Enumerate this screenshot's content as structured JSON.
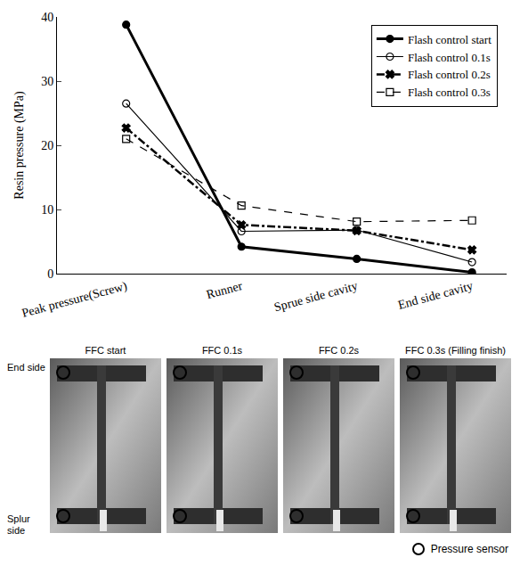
{
  "chart_data": {
    "type": "line",
    "categories": [
      "Peak pressure(Screw)",
      "Runner",
      "Sprue side cavity",
      "End side cavity"
    ],
    "y_label": "Resin pressure (MPa)",
    "ylim": [
      0,
      40
    ],
    "yticks": [
      0,
      10,
      20,
      30,
      40
    ],
    "grid": false,
    "legend": "top right",
    "series": [
      {
        "name": "Flash control start",
        "color": "#000000",
        "marker": "circle",
        "line_style": "solid",
        "values": [
          38.8,
          4.2,
          2.3,
          0.2
        ]
      },
      {
        "name": "Flash control 0.1s",
        "color": "#000000",
        "marker": "circle-open",
        "line_style": "solid",
        "values": [
          26.5,
          6.6,
          6.8,
          1.8
        ]
      },
      {
        "name": "Flash control 0.2s",
        "color": "#000000",
        "marker": "x",
        "line_style": "dashdot",
        "values": [
          22.7,
          7.6,
          6.7,
          3.7
        ]
      },
      {
        "name": "Flash control 0.3s",
        "color": "#000000",
        "marker": "square-open",
        "line_style": "dash",
        "values": [
          21.0,
          10.6,
          8.1,
          8.3
        ]
      }
    ]
  },
  "photos": {
    "panels": [
      "FFC start",
      "FFC 0.1s",
      "FFC 0.2s",
      "FFC 0.3s (Filling finish)"
    ],
    "row_labels": [
      "End side",
      "Splur side"
    ],
    "key": "Pressure sensor"
  }
}
